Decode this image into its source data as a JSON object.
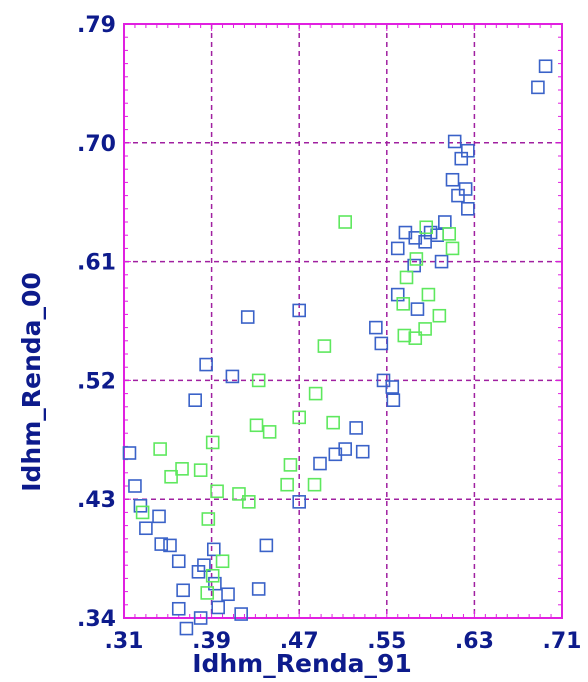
{
  "chart_data": {
    "type": "scatter",
    "xlabel": "Idhm_Renda_91",
    "ylabel": "Idhm_Renda_00",
    "xlim": [
      0.31,
      0.71
    ],
    "ylim": [
      0.34,
      0.79
    ],
    "xticks": [
      ".31",
      ".39",
      ".47",
      ".55",
      ".63",
      ".71"
    ],
    "yticks": [
      ".34",
      ".43",
      ".52",
      ".61",
      ".70",
      ".79"
    ],
    "grid": true,
    "legend": "none",
    "colors": {
      "frame": "#e020e0",
      "grid": "#a020a0",
      "text": "#0d1b8c"
    },
    "series": [
      {
        "color": "#3a62c8",
        "points": [
          [
            0.695,
            0.758
          ],
          [
            0.688,
            0.742
          ],
          [
            0.612,
            0.701
          ],
          [
            0.624,
            0.694
          ],
          [
            0.618,
            0.688
          ],
          [
            0.61,
            0.672
          ],
          [
            0.622,
            0.665
          ],
          [
            0.615,
            0.66
          ],
          [
            0.624,
            0.65
          ],
          [
            0.603,
            0.64
          ],
          [
            0.6,
            0.61
          ],
          [
            0.596,
            0.63
          ],
          [
            0.59,
            0.632
          ],
          [
            0.585,
            0.625
          ],
          [
            0.576,
            0.628
          ],
          [
            0.567,
            0.632
          ],
          [
            0.575,
            0.607
          ],
          [
            0.56,
            0.62
          ],
          [
            0.545,
            0.548
          ],
          [
            0.547,
            0.52
          ],
          [
            0.555,
            0.515
          ],
          [
            0.556,
            0.505
          ],
          [
            0.54,
            0.56
          ],
          [
            0.578,
            0.574
          ],
          [
            0.56,
            0.585
          ],
          [
            0.522,
            0.484
          ],
          [
            0.512,
            0.468
          ],
          [
            0.528,
            0.466
          ],
          [
            0.315,
            0.465
          ],
          [
            0.32,
            0.44
          ],
          [
            0.325,
            0.425
          ],
          [
            0.33,
            0.408
          ],
          [
            0.342,
            0.417
          ],
          [
            0.344,
            0.396
          ],
          [
            0.352,
            0.395
          ],
          [
            0.36,
            0.383
          ],
          [
            0.364,
            0.361
          ],
          [
            0.378,
            0.375
          ],
          [
            0.383,
            0.38
          ],
          [
            0.392,
            0.392
          ],
          [
            0.393,
            0.366
          ],
          [
            0.405,
            0.358
          ],
          [
            0.396,
            0.348
          ],
          [
            0.36,
            0.347
          ],
          [
            0.367,
            0.332
          ],
          [
            0.38,
            0.34
          ],
          [
            0.417,
            0.343
          ],
          [
            0.433,
            0.362
          ],
          [
            0.44,
            0.395
          ],
          [
            0.47,
            0.428
          ],
          [
            0.489,
            0.457
          ],
          [
            0.503,
            0.464
          ],
          [
            0.47,
            0.573
          ],
          [
            0.423,
            0.568
          ],
          [
            0.409,
            0.523
          ],
          [
            0.385,
            0.532
          ],
          [
            0.375,
            0.505
          ]
        ]
      },
      {
        "color": "#5ee85e",
        "points": [
          [
            0.512,
            0.64
          ],
          [
            0.586,
            0.636
          ],
          [
            0.607,
            0.631
          ],
          [
            0.61,
            0.62
          ],
          [
            0.577,
            0.612
          ],
          [
            0.568,
            0.598
          ],
          [
            0.588,
            0.585
          ],
          [
            0.565,
            0.578
          ],
          [
            0.598,
            0.569
          ],
          [
            0.585,
            0.559
          ],
          [
            0.576,
            0.552
          ],
          [
            0.566,
            0.554
          ],
          [
            0.493,
            0.546
          ],
          [
            0.485,
            0.51
          ],
          [
            0.501,
            0.488
          ],
          [
            0.47,
            0.492
          ],
          [
            0.462,
            0.456
          ],
          [
            0.484,
            0.441
          ],
          [
            0.459,
            0.441
          ],
          [
            0.327,
            0.42
          ],
          [
            0.343,
            0.468
          ],
          [
            0.353,
            0.447
          ],
          [
            0.363,
            0.453
          ],
          [
            0.38,
            0.452
          ],
          [
            0.391,
            0.473
          ],
          [
            0.395,
            0.436
          ],
          [
            0.387,
            0.415
          ],
          [
            0.4,
            0.383
          ],
          [
            0.391,
            0.372
          ],
          [
            0.386,
            0.359
          ],
          [
            0.415,
            0.434
          ],
          [
            0.424,
            0.428
          ],
          [
            0.431,
            0.486
          ],
          [
            0.433,
            0.52
          ],
          [
            0.443,
            0.481
          ]
        ]
      }
    ]
  }
}
